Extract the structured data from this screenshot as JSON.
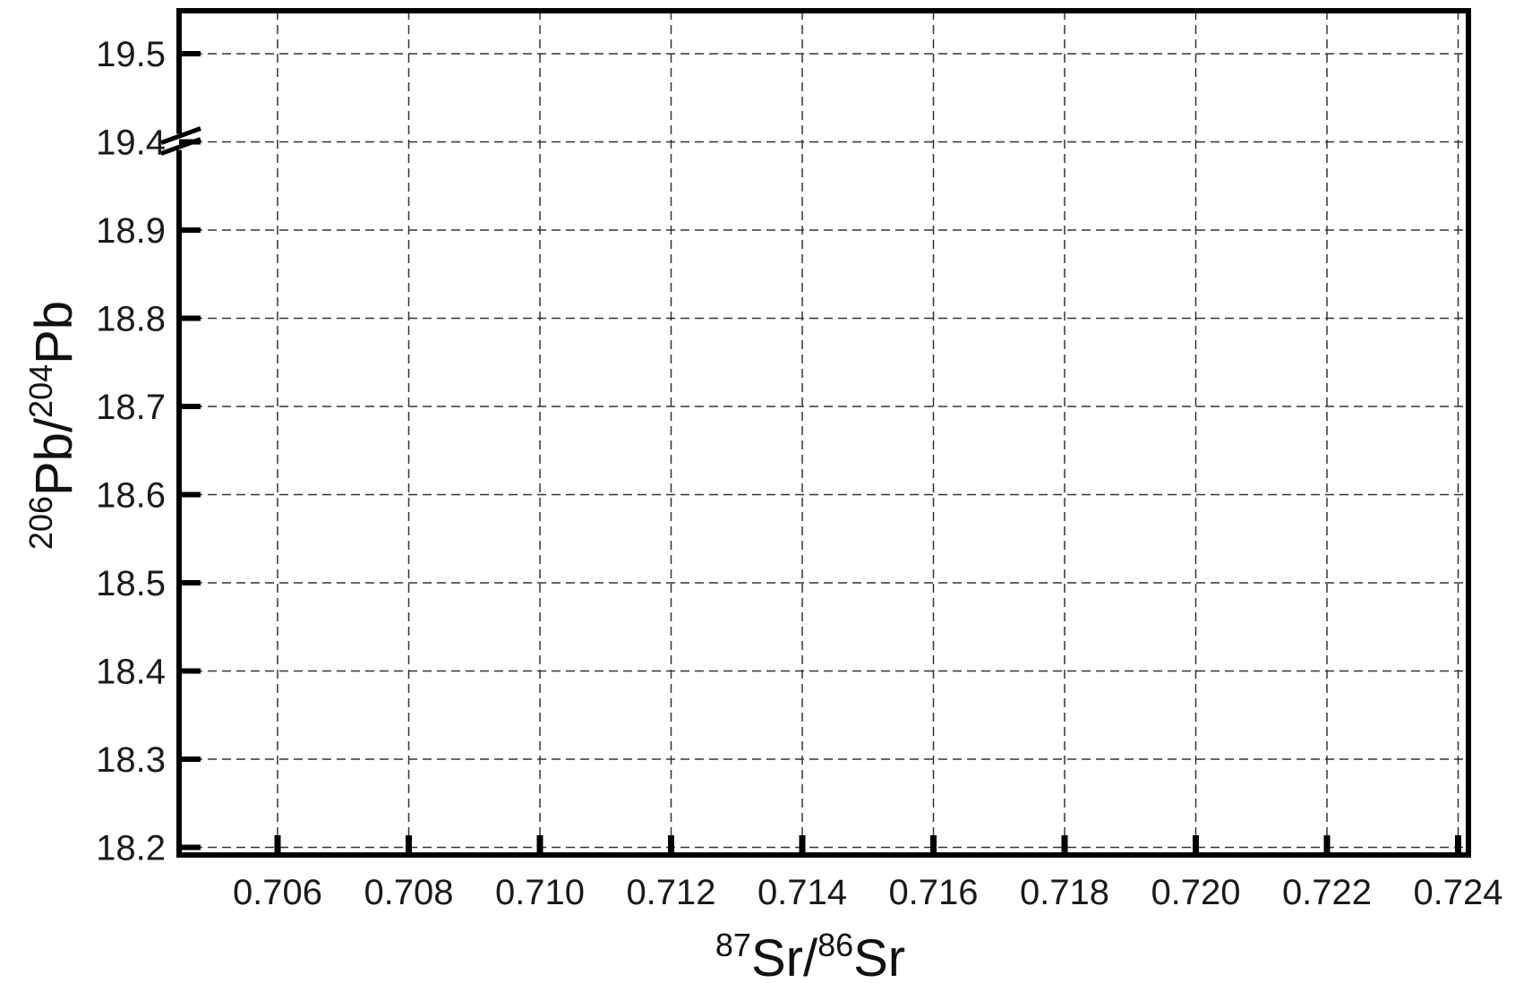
{
  "chart_data": {
    "type": "scatter",
    "title": "",
    "xlabel": {
      "sup1": "87",
      "base1": "Sr/",
      "sup2": "86",
      "base2": "Sr"
    },
    "ylabel": {
      "sup1": "206",
      "base1": "Pb/",
      "sup2": "204",
      "base2": "Pb"
    },
    "xlim": [
      0.7045,
      0.724
    ],
    "xticks": [
      "0.706",
      "0.708",
      "0.710",
      "0.712",
      "0.714",
      "0.716",
      "0.718",
      "0.720",
      "0.722",
      "0.724"
    ],
    "yticks": [
      "19.5",
      "19.4",
      "18.9",
      "18.8",
      "18.7",
      "18.6",
      "18.5",
      "18.4",
      "18.3",
      "18.2"
    ],
    "y_axis_break": {
      "between": [
        18.9,
        19.4
      ]
    },
    "grid": true,
    "grid_style": "dashed",
    "series": [],
    "colors": {
      "axis": "#000000",
      "grid": "#333333",
      "text": "#1a1a1a"
    }
  }
}
